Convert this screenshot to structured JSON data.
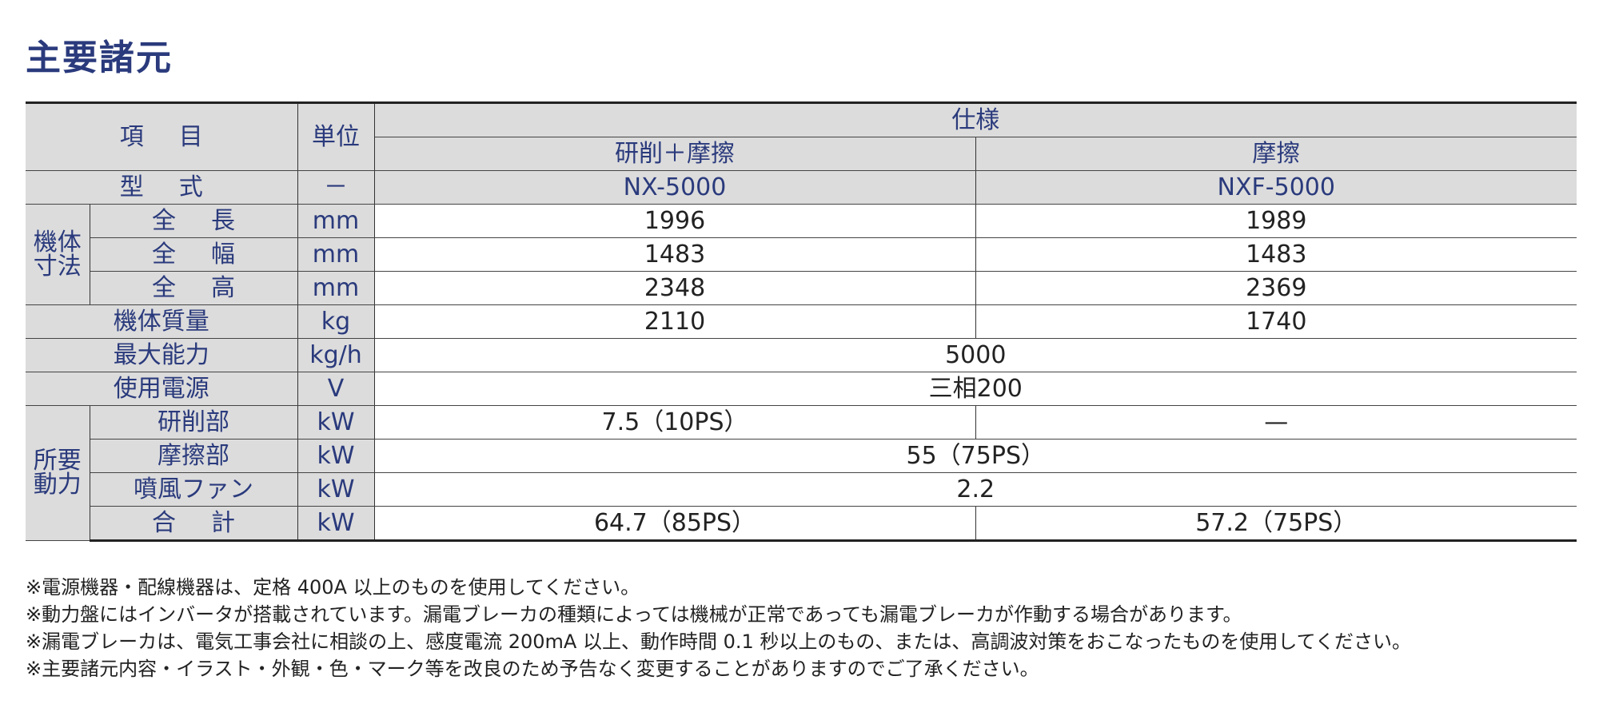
{
  "title": "主要諸元",
  "table": {
    "header": {
      "item": "項目",
      "unit": "単位",
      "spec": "仕様",
      "col1": "研削＋摩擦",
      "col2": "摩擦"
    },
    "model": {
      "label": "型式",
      "unit": "－",
      "v1": "NX-5000",
      "v2": "NXF-5000"
    },
    "dim_group": "機体寸法",
    "dims": [
      {
        "label": "全長",
        "unit": "mm",
        "v1": "1996",
        "v2": "1989"
      },
      {
        "label": "全幅",
        "unit": "mm",
        "v1": "1483",
        "v2": "1483"
      },
      {
        "label": "全高",
        "unit": "mm",
        "v1": "2348",
        "v2": "2369"
      }
    ],
    "mass": {
      "label": "機体質量",
      "unit": "kg",
      "v1": "2110",
      "v2": "1740"
    },
    "capacity": {
      "label": "最大能力",
      "unit": "kg/h",
      "v": "5000"
    },
    "power_source": {
      "label": "使用電源",
      "unit": "V",
      "v": "三相200"
    },
    "power_group": "所要動力",
    "power": {
      "grinding": {
        "label": "研削部",
        "unit": "kW",
        "v1": "7.5（10PS）",
        "v2": "—"
      },
      "friction": {
        "label": "摩擦部",
        "unit": "kW",
        "v": "55（75PS）"
      },
      "fan": {
        "label": "噴風ファン",
        "unit": "kW",
        "v": "2.2"
      },
      "total": {
        "label": "合計",
        "unit": "kW",
        "v1": "64.7（85PS）",
        "v2": "57.2（75PS）"
      }
    }
  },
  "notes": [
    "※電源機器・配線機器は、定格 400A 以上のものを使用してください。",
    "※動力盤にはインバータが搭載されています。漏電ブレーカの種類によっては機械が正常であっても漏電ブレーカが作動する場合があります。",
    "※漏電ブレーカは、電気工事会社に相談の上、感度電流 200mA 以上、動作時間 0.1 秒以上のもの、または、高調波対策をおこなったものを使用してください。",
    "※主要諸元内容・イラスト・外観・色・マーク等を改良のため予告なく変更することがありますのでご了承ください。"
  ]
}
